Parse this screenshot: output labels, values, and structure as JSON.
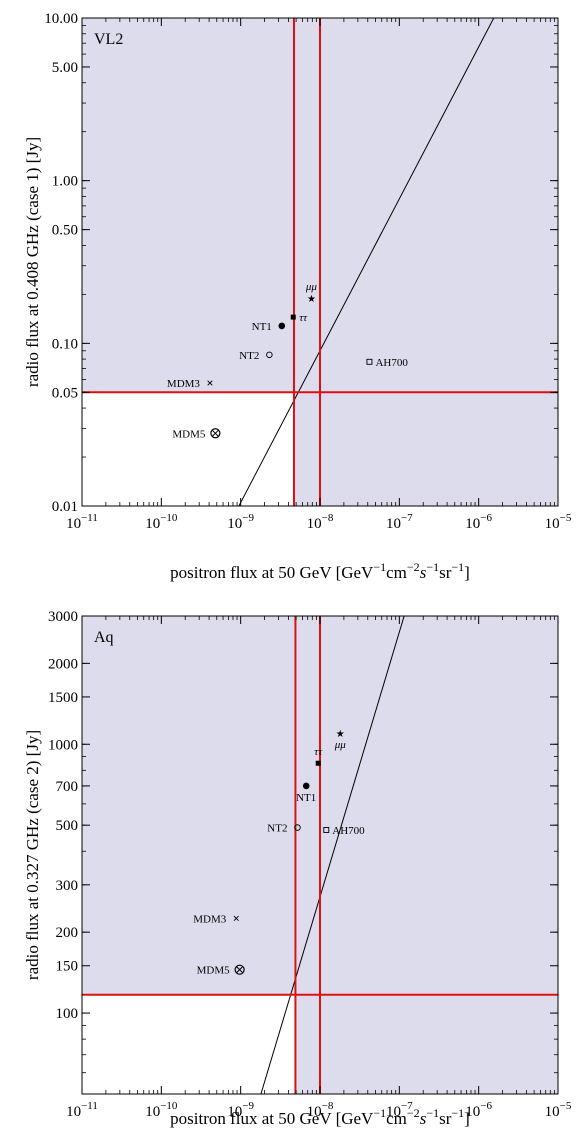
{
  "colors": {
    "shade": "#dcdcec",
    "red": "#e01010",
    "frame": "#000000"
  },
  "chart_data": [
    {
      "type": "scatter",
      "panel_label": "VL2",
      "xlabel_parts": [
        "positron flux at 50 GeV [GeV",
        "−1",
        "cm",
        "−2",
        "s",
        "−1",
        "sr",
        "−1",
        "]"
      ],
      "ylabel": "radio flux at 0.408 GHz (case 1) [Jy]",
      "x_scale": "log",
      "y_scale": "log",
      "xlim": [
        1e-11,
        1e-05
      ],
      "ylim": [
        0.01,
        10
      ],
      "x_ticks": [
        {
          "value": 1e-11,
          "base": "10",
          "exp": "−11"
        },
        {
          "value": 1e-10,
          "base": "10",
          "exp": "−10"
        },
        {
          "value": 1e-09,
          "base": "10",
          "exp": "−9"
        },
        {
          "value": 1e-08,
          "base": "10",
          "exp": "−8"
        },
        {
          "value": 1e-07,
          "base": "10",
          "exp": "−7"
        },
        {
          "value": 1e-06,
          "base": "10",
          "exp": "−6"
        },
        {
          "value": 1e-05,
          "base": "10",
          "exp": "−5"
        }
      ],
      "y_ticks": [
        {
          "value": 0.01,
          "label": "0.01"
        },
        {
          "value": 0.05,
          "label": "0.05"
        },
        {
          "value": 0.1,
          "label": "0.10"
        },
        {
          "value": 0.5,
          "label": "0.50"
        },
        {
          "value": 1,
          "label": "1.00"
        },
        {
          "value": 5,
          "label": "5.00"
        },
        {
          "value": 10,
          "label": "10.00"
        }
      ],
      "vlines": [
        4.7e-09,
        1e-08
      ],
      "hline": 0.05,
      "diagonal": [
        [
          9.5e-10,
          0.01
        ],
        [
          1.55e-06,
          10
        ]
      ],
      "points": [
        {
          "label": "μμ",
          "x": 7.8e-09,
          "y": 0.19,
          "marker": "star",
          "label_pos": "above"
        },
        {
          "label": "ττ",
          "x": 4.6e-09,
          "y": 0.145,
          "marker": "square-filled",
          "label_pos": "right"
        },
        {
          "label": "NT1",
          "x": 3.3e-09,
          "y": 0.128,
          "marker": "circle-filled",
          "label_pos": "left"
        },
        {
          "label": "NT2",
          "x": 2.3e-09,
          "y": 0.085,
          "marker": "circle-open",
          "label_pos": "left"
        },
        {
          "label": "MDM3",
          "x": 4.1e-10,
          "y": 0.057,
          "marker": "cross",
          "label_pos": "left"
        },
        {
          "label": "AH700",
          "x": 4.2e-08,
          "y": 0.077,
          "marker": "square-open",
          "label_pos": "right"
        },
        {
          "label": "MDM5",
          "x": 4.8e-10,
          "y": 0.028,
          "marker": "otimes",
          "label_pos": "left"
        }
      ]
    },
    {
      "type": "scatter",
      "panel_label": "Aq",
      "xlabel_parts": [
        "positron flux at 50 GeV [GeV",
        "−1",
        "cm",
        "−2",
        "s",
        "−1",
        "sr",
        "−1",
        "]"
      ],
      "ylabel": "radio flux at 0.327 GHz (case 2) [Jy]",
      "x_scale": "log",
      "y_scale": "log",
      "xlim": [
        1e-11,
        1e-05
      ],
      "ylim": [
        50,
        3000
      ],
      "x_ticks": [
        {
          "value": 1e-11,
          "base": "10",
          "exp": "−11"
        },
        {
          "value": 1e-10,
          "base": "10",
          "exp": "−10"
        },
        {
          "value": 1e-09,
          "base": "10",
          "exp": "−9"
        },
        {
          "value": 1e-08,
          "base": "10",
          "exp": "−8"
        },
        {
          "value": 1e-07,
          "base": "10",
          "exp": "−7"
        },
        {
          "value": 1e-06,
          "base": "10",
          "exp": "−6"
        },
        {
          "value": 1e-05,
          "base": "10",
          "exp": "−5"
        }
      ],
      "y_ticks": [
        {
          "value": 100,
          "label": "100"
        },
        {
          "value": 150,
          "label": "150"
        },
        {
          "value": 200,
          "label": "200"
        },
        {
          "value": 300,
          "label": "300"
        },
        {
          "value": 500,
          "label": "500"
        },
        {
          "value": 700,
          "label": "700"
        },
        {
          "value": 1000,
          "label": "1000"
        },
        {
          "value": 1500,
          "label": "1500"
        },
        {
          "value": 2000,
          "label": "2000"
        },
        {
          "value": 3000,
          "label": "3000"
        }
      ],
      "vlines": [
        4.9e-09,
        1e-08
      ],
      "hline": 117,
      "diagonal": [
        [
          1.8e-09,
          50
        ],
        [
          1.15e-07,
          3000
        ]
      ],
      "points": [
        {
          "label": "μμ",
          "x": 1.8e-08,
          "y": 1100,
          "marker": "star",
          "label_pos": "below"
        },
        {
          "label": "ττ",
          "x": 9.5e-09,
          "y": 850,
          "marker": "square-filled",
          "label_pos": "above"
        },
        {
          "label": "NT1",
          "x": 6.7e-09,
          "y": 700,
          "marker": "circle-filled",
          "label_pos": "below"
        },
        {
          "label": "NT2",
          "x": 5.2e-09,
          "y": 490,
          "marker": "circle-open",
          "label_pos": "left"
        },
        {
          "label": "AH700",
          "x": 1.2e-08,
          "y": 480,
          "marker": "square-open",
          "label_pos": "right"
        },
        {
          "label": "MDM3",
          "x": 8.8e-10,
          "y": 225,
          "marker": "cross",
          "label_pos": "left"
        },
        {
          "label": "MDM5",
          "x": 9.7e-10,
          "y": 145,
          "marker": "otimes",
          "label_pos": "left"
        }
      ]
    }
  ]
}
